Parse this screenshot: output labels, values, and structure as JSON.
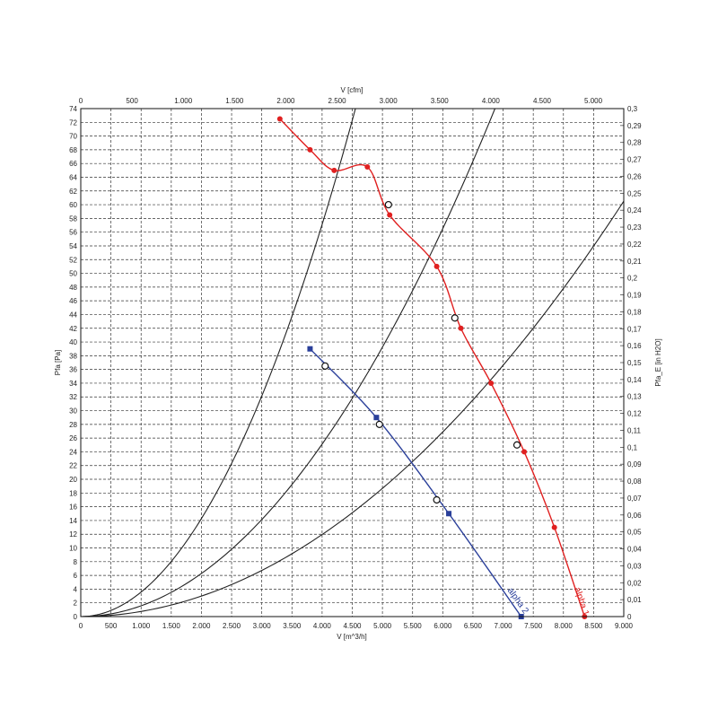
{
  "chart_data": {
    "type": "line",
    "x_bottom": {
      "label": "V [m^3/h]",
      "min": 0,
      "max": 9000,
      "ticks": [
        0,
        500,
        1000,
        1500,
        2000,
        2500,
        3000,
        3500,
        4000,
        4500,
        5000,
        5500,
        6000,
        6500,
        7000,
        7500,
        8000,
        8500,
        9000
      ],
      "tick_labels": [
        "0",
        "500",
        "1.000",
        "1.500",
        "2.000",
        "2.500",
        "3.000",
        "3.500",
        "4.000",
        "4.500",
        "5.000",
        "5.500",
        "6.000",
        "6.500",
        "7.000",
        "7.500",
        "8.000",
        "8.500",
        "9.000"
      ]
    },
    "x_top": {
      "label": "V [cfm]",
      "min": 0,
      "max": 5297,
      "ticks": [
        0,
        500,
        1000,
        1500,
        2000,
        2500,
        3000,
        3500,
        4000,
        4500,
        5000
      ],
      "tick_labels": [
        "0",
        "500",
        "1.000",
        "1.500",
        "2.000",
        "2.500",
        "3.000",
        "3.500",
        "4.000",
        "4.500",
        "5.000"
      ]
    },
    "y_left": {
      "label": "Pfa [Pa]",
      "min": 0,
      "max": 74,
      "step": 2
    },
    "y_right": {
      "label": "Pfa_E [in H2O]",
      "min": 0,
      "max": 0.3,
      "step": 0.01,
      "tick_labels": [
        "0",
        "0,01",
        "0,02",
        "0,03",
        "0,04",
        "0,05",
        "0,06",
        "0,07",
        "0,08",
        "0,09",
        "0,1",
        "0,11",
        "0,12",
        "0,13",
        "0,14",
        "0,15",
        "0,16",
        "0,17",
        "0,18",
        "0,19",
        "0,2",
        "0,21",
        "0,22",
        "0,23",
        "0,24",
        "0,25",
        "0,26",
        "0,27",
        "0,28",
        "0,29",
        "0,3"
      ]
    },
    "grid": true,
    "series": [
      {
        "name": "alpha 1",
        "color": "#e02020",
        "marker": "circle",
        "x": [
          3300,
          3800,
          4200,
          4750,
          5120,
          5900,
          6300,
          6800,
          7350,
          7850,
          8350
        ],
        "y": [
          72.5,
          68,
          65,
          65.5,
          58.5,
          51,
          42,
          34,
          24,
          13,
          0
        ]
      },
      {
        "name": "alpha 2",
        "color": "#2a3f9a",
        "marker": "square",
        "x": [
          3800,
          4900,
          6100,
          7300
        ],
        "y": [
          39,
          29,
          15,
          0
        ]
      }
    ],
    "system_curves": [
      {
        "k": 3.57e-06
      },
      {
        "k": 1.57e-06
      },
      {
        "k": 7.47e-07
      }
    ],
    "operating_points": [
      {
        "x": 5100,
        "y": 60
      },
      {
        "x": 6200,
        "y": 43.5
      },
      {
        "x": 7230,
        "y": 25
      },
      {
        "x": 4050,
        "y": 36.5
      },
      {
        "x": 4950,
        "y": 28
      },
      {
        "x": 5900,
        "y": 17
      }
    ]
  }
}
